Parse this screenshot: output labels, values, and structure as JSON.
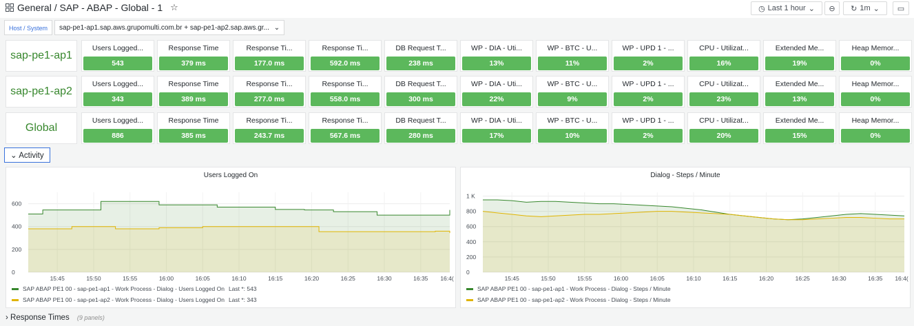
{
  "header": {
    "breadcrumb": "General / SAP - ABAP - Global - 1",
    "time_range": "Last 1 hour",
    "refresh": "1m",
    "icons": [
      "apps-icon",
      "star-icon",
      "clock-icon",
      "zoom-out-icon",
      "refresh-icon",
      "tv-icon"
    ]
  },
  "variables": {
    "label": "Host / System",
    "value": "sap-pe1-ap1.sap.aws.grupomulti.com.br + sap-pe1-ap2.sap.aws.gr..."
  },
  "stats": {
    "columns": [
      "Users Logged...",
      "Response Time",
      "Response Ti...",
      "Response Ti...",
      "DB Request T...",
      "WP - DIA - Uti...",
      "WP - BTC - U...",
      "WP - UPD 1 - ...",
      "CPU - Utilizat...",
      "Extended Me...",
      "Heap Memor..."
    ],
    "rows": [
      {
        "host": "sap-pe1-ap1",
        "values": [
          "543",
          "379 ms",
          "177.0 ms",
          "592.0 ms",
          "238 ms",
          "13%",
          "11%",
          "2%",
          "16%",
          "19%",
          "0%"
        ]
      },
      {
        "host": "sap-pe1-ap2",
        "values": [
          "343",
          "389 ms",
          "277.0 ms",
          "558.0 ms",
          "300 ms",
          "22%",
          "9%",
          "2%",
          "23%",
          "13%",
          "0%"
        ]
      },
      {
        "host": "Global",
        "values": [
          "886",
          "385 ms",
          "243.7 ms",
          "567.6 ms",
          "280 ms",
          "17%",
          "10%",
          "2%",
          "20%",
          "15%",
          "0%"
        ]
      }
    ],
    "colors": {
      "ok": "#5cb85c",
      "host_text": "#37872d"
    }
  },
  "rows": {
    "activity": "Activity",
    "response_times": "Response Times",
    "response_times_sub": "(9 panels)"
  },
  "chart_data": [
    {
      "type": "area",
      "title": "Users Logged On",
      "x": [
        "15:41",
        "15:43",
        "15:45",
        "15:47",
        "15:49",
        "15:51",
        "15:53",
        "15:55",
        "15:57",
        "15:59",
        "16:01",
        "16:03",
        "16:05",
        "16:07",
        "16:09",
        "16:11",
        "16:13",
        "16:15",
        "16:17",
        "16:19",
        "16:21",
        "16:23",
        "16:25",
        "16:27",
        "16:29",
        "16:31",
        "16:33",
        "16:35",
        "16:37",
        "16:39"
      ],
      "xticks": [
        "15:45",
        "15:50",
        "15:55",
        "16:00",
        "16:05",
        "16:10",
        "16:15",
        "16:20",
        "16:25",
        "16:30",
        "16:35",
        "16:4("
      ],
      "yticks": [
        "0",
        "200",
        "400",
        "600"
      ],
      "ylim": [
        0,
        700
      ],
      "series": [
        {
          "name": "SAP ABAP PE1 00 - sap-pe1-ap1 - Work Process - Dialog - Users Logged On",
          "color": "#37872d",
          "last": "Last *: 543",
          "values": [
            510,
            545,
            545,
            545,
            545,
            620,
            620,
            620,
            620,
            590,
            590,
            590,
            590,
            570,
            570,
            570,
            570,
            550,
            550,
            545,
            545,
            530,
            530,
            530,
            500,
            500,
            500,
            500,
            500,
            545
          ]
        },
        {
          "name": "SAP ABAP PE1 00 - sap-pe1-ap2 - Work Process - Dialog - Users Logged On",
          "color": "#e0b400",
          "last": "Last *: 343",
          "values": [
            380,
            380,
            380,
            400,
            400,
            400,
            380,
            380,
            380,
            390,
            390,
            390,
            400,
            400,
            400,
            400,
            400,
            400,
            400,
            400,
            355,
            355,
            355,
            355,
            355,
            355,
            355,
            355,
            360,
            343
          ]
        }
      ]
    },
    {
      "type": "area",
      "title": "Dialog - Steps / Minute",
      "x": [
        "15:41",
        "15:43",
        "15:45",
        "15:47",
        "15:49",
        "15:51",
        "15:53",
        "15:55",
        "15:57",
        "15:59",
        "16:01",
        "16:03",
        "16:05",
        "16:07",
        "16:09",
        "16:11",
        "16:13",
        "16:15",
        "16:17",
        "16:19",
        "16:21",
        "16:23",
        "16:25",
        "16:27",
        "16:29",
        "16:31",
        "16:33",
        "16:35",
        "16:37",
        "16:39"
      ],
      "xticks": [
        "15:45",
        "15:50",
        "15:55",
        "16:00",
        "16:05",
        "16:10",
        "16:15",
        "16:20",
        "16:25",
        "16:30",
        "16:35",
        "16:4("
      ],
      "yticks": [
        "0",
        "200",
        "400",
        "600",
        "800",
        "1 K"
      ],
      "ylim": [
        0,
        1050
      ],
      "series": [
        {
          "name": "SAP ABAP PE1 00 - sap-pe1-ap1 - Work Process - Dialog - Steps / Minute",
          "color": "#37872d",
          "values": [
            950,
            950,
            940,
            920,
            930,
            930,
            920,
            910,
            900,
            900,
            890,
            880,
            870,
            860,
            840,
            820,
            790,
            760,
            740,
            720,
            700,
            690,
            700,
            720,
            740,
            760,
            770,
            760,
            750,
            740
          ]
        },
        {
          "name": "SAP ABAP PE1 00 - sap-pe1-ap2 - Work Process - Dialog - Steps / Minute",
          "color": "#e0b400",
          "values": [
            800,
            780,
            760,
            740,
            730,
            740,
            750,
            760,
            760,
            770,
            780,
            790,
            800,
            800,
            790,
            780,
            770,
            760,
            740,
            720,
            700,
            690,
            690,
            700,
            710,
            720,
            720,
            710,
            700,
            700
          ]
        }
      ]
    }
  ]
}
